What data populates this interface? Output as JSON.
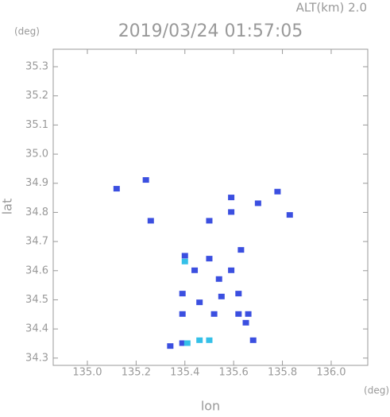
{
  "chart_data": {
    "type": "scatter",
    "title": "2019/03/24 01:57:05",
    "altitude_label": "ALT(km) 2.0",
    "y_unit": "(deg)",
    "x_unit": "(deg)",
    "x_label": "lon",
    "y_label": "lat",
    "xlim": [
      134.86,
      136.15
    ],
    "ylim": [
      34.275,
      35.36
    ],
    "xticks": [
      {
        "value": 135,
        "label": "135.0"
      },
      135.2,
      135.4,
      135.6,
      135.8,
      {
        "value": 136,
        "label": "136.0"
      }
    ],
    "yticks": [
      34.3,
      34.4,
      34.5,
      34.6,
      34.7,
      34.8,
      34.9,
      {
        "value": 35,
        "label": "35.0"
      },
      35.1,
      35.2,
      35.3
    ],
    "series": [
      {
        "color": "#3b4fe0",
        "x": [
          135.12,
          135.24,
          135.26,
          135.59,
          135.59,
          135.7,
          135.78,
          135.83,
          135.5,
          135.4,
          135.5,
          135.54,
          135.55,
          135.62,
          135.63,
          135.59,
          135.44,
          135.39,
          135.39,
          135.46,
          135.52,
          135.62,
          135.65,
          135.66,
          135.68,
          135.34,
          135.39
        ],
        "values": [
          34.88,
          34.91,
          34.77,
          34.85,
          34.8,
          34.83,
          34.87,
          34.79,
          34.77,
          34.65,
          34.64,
          34.57,
          34.51,
          34.52,
          34.67,
          34.6,
          34.6,
          34.52,
          34.45,
          34.49,
          34.45,
          34.45,
          34.42,
          34.45,
          34.36,
          34.34,
          34.35
        ]
      },
      {
        "color": "#35c0e8",
        "x": [
          135.41,
          135.46,
          135.5,
          135.4
        ],
        "values": [
          34.35,
          34.36,
          34.36,
          34.63
        ]
      }
    ]
  }
}
